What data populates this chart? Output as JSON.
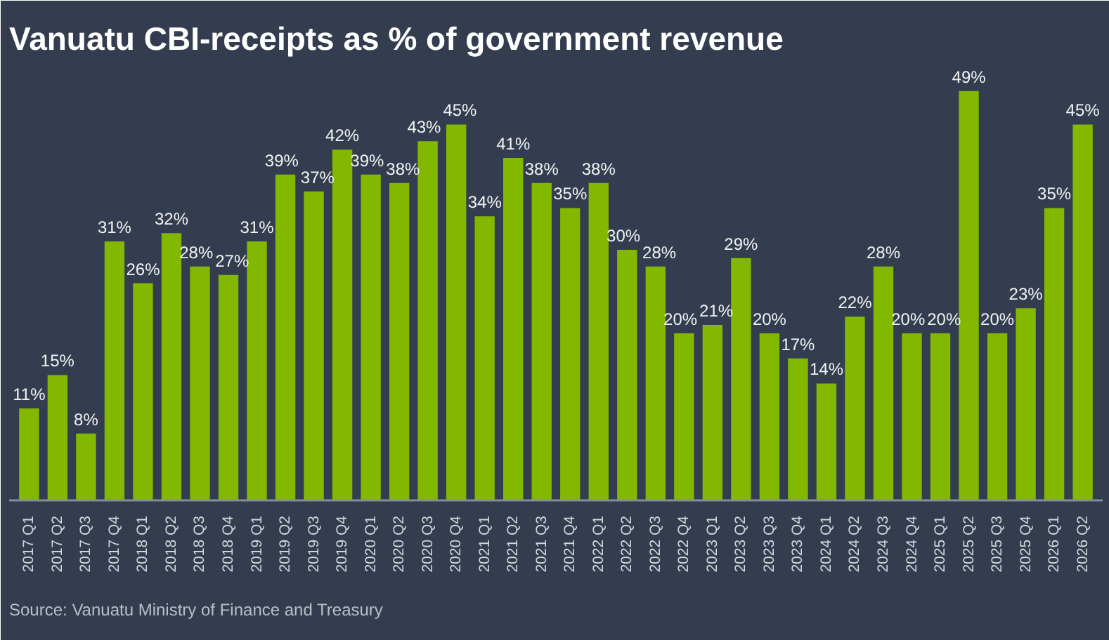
{
  "chart_data": {
    "type": "bar",
    "title": "Vanuatu CBI-receipts as % of government revenue",
    "categories": [
      "2017 Q1",
      "2017 Q2",
      "2017 Q3",
      "2017 Q4",
      "2018 Q1",
      "2018 Q2",
      "2018 Q3",
      "2018 Q4",
      "2019 Q1",
      "2019 Q2",
      "2019 Q3",
      "2019 Q4",
      "2020 Q1",
      "2020 Q2",
      "2020 Q3",
      "2020 Q4",
      "2021 Q1",
      "2021 Q2",
      "2021 Q3",
      "2021 Q4",
      "2022 Q1",
      "2022 Q2",
      "2022 Q3",
      "2022 Q4",
      "2023 Q1",
      "2023 Q2",
      "2023 Q3",
      "2023 Q4",
      "2024 Q1",
      "2024 Q2",
      "2024 Q3",
      "2024 Q4",
      "2025 Q1",
      "2025 Q2",
      "2025 Q3",
      "2025 Q4",
      "2026 Q1",
      "2026 Q2"
    ],
    "values": [
      11,
      15,
      8,
      31,
      26,
      32,
      28,
      27,
      31,
      39,
      37,
      42,
      39,
      38,
      43,
      45,
      34,
      41,
      38,
      35,
      38,
      30,
      28,
      20,
      21,
      29,
      20,
      17,
      14,
      22,
      28,
      20,
      20,
      49,
      20,
      23,
      35,
      45
    ],
    "value_labels": [
      "11%",
      "15%",
      "8%",
      "31%",
      "26%",
      "32%",
      "28%",
      "27%",
      "31%",
      "39%",
      "37%",
      "42%",
      "39%",
      "38%",
      "43%",
      "45%",
      "34%",
      "41%",
      "38%",
      "35%",
      "38%",
      "30%",
      "28%",
      "20%",
      "21%",
      "29%",
      "20%",
      "17%",
      "14%",
      "22%",
      "28%",
      "20%",
      "20%",
      "49%",
      "20%",
      "23%",
      "35%",
      "45%"
    ],
    "color": "#83b800",
    "annotations": [
      "Source: Vanuatu Ministry of Finance and Treasury"
    ]
  }
}
